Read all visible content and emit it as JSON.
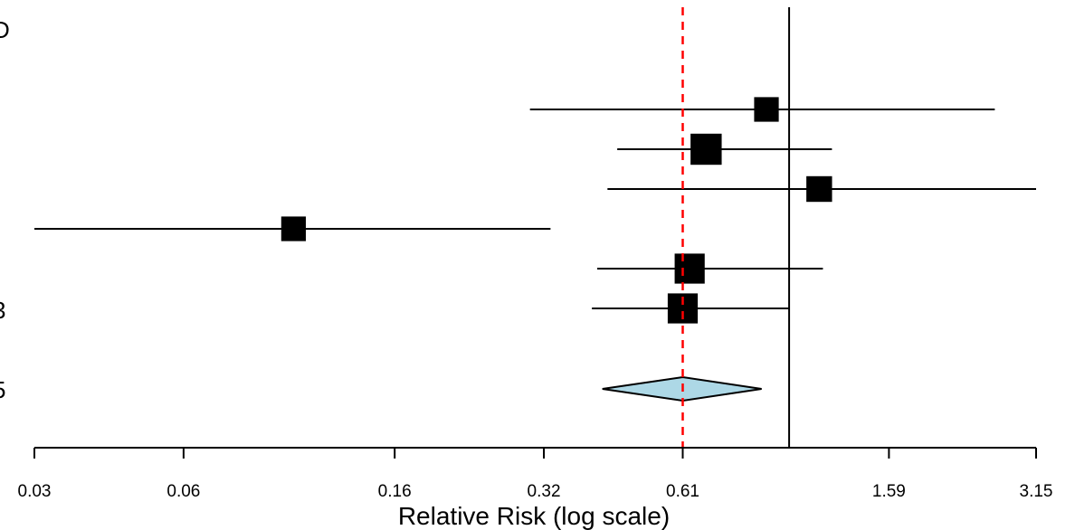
{
  "chart_data": {
    "type": "forest",
    "xlabel": "Relative Risk (log scale)",
    "x_scale": "log",
    "xlim": [
      0.03,
      3.15
    ],
    "x_ticks": [
      0.03,
      0.06,
      0.16,
      0.32,
      0.61,
      1.59,
      3.15
    ],
    "x_tick_labels": [
      "0.03",
      "0.06",
      "0.16",
      "0.32",
      "0.61",
      "1.59",
      "3.15"
    ],
    "reference_line": 1.0,
    "pooled_line": 0.61,
    "studies": [
      {
        "rr": 0.9,
        "ci_low": 0.3,
        "ci_high": 2.6,
        "weight": 0.55
      },
      {
        "rr": 0.68,
        "ci_low": 0.45,
        "ci_high": 1.22,
        "weight": 0.85
      },
      {
        "rr": 1.15,
        "ci_low": 0.43,
        "ci_high": 3.15,
        "weight": 0.6
      },
      {
        "rr": 0.1,
        "ci_low": 0.03,
        "ci_high": 0.33,
        "weight": 0.55
      },
      {
        "rr": 0.63,
        "ci_low": 0.41,
        "ci_high": 1.17,
        "weight": 0.8
      },
      {
        "rr": 0.61,
        "ci_low": 0.4,
        "ci_high": 1.0,
        "weight": 0.8
      }
    ],
    "summary": {
      "rr": 0.61,
      "ci_low": 0.42,
      "ci_high": 0.88
    },
    "colors": {
      "summary_fill": "#add8e6",
      "pooled_line": "#ff0000",
      "marks": "#000000"
    },
    "edge_labels": [
      "D",
      "3",
      "5"
    ]
  }
}
